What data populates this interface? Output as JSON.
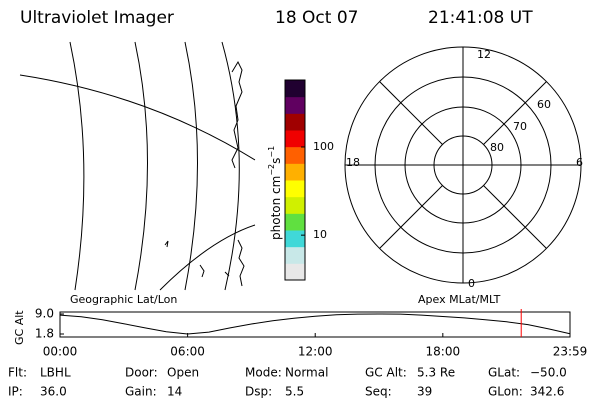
{
  "header": {
    "title": "Ultraviolet Imager",
    "date": "18 Oct 07",
    "time": "21:41:08 UT"
  },
  "colorbar": {
    "unit": {
      "base": "photon cm",
      "exp1": "−2",
      "mid": "s",
      "exp2": "−1"
    },
    "colors": [
      "#e8e8e8",
      "#c8e8e8",
      "#40d8d8",
      "#60e040",
      "#d0f000",
      "#ffff00",
      "#ffb000",
      "#ff6000",
      "#f00000",
      "#a00000",
      "#600060",
      "#200030"
    ],
    "log": true,
    "lim": [
      3.1,
      575
    ],
    "ticks": [
      10,
      100
    ]
  },
  "polar": {
    "mlt_labels": [
      "12",
      "18",
      "6",
      "0"
    ],
    "lat_labels": [
      "60",
      "70",
      "80"
    ]
  },
  "altitude": {
    "left_label": "Geographic Lat/Lon",
    "right_label": "Apex MLat/MLT",
    "ylabel": "GC Alt",
    "ylim": [
      0.72,
      9.72
    ],
    "yticks": [
      {
        "value": 9,
        "label": "9.0"
      },
      {
        "value": 1.8,
        "label": "1.8"
      }
    ],
    "xlim": [
      0,
      23.98
    ],
    "xticks": [
      {
        "value": 0,
        "label": "00:00"
      },
      {
        "value": 6,
        "label": "06:00"
      },
      {
        "value": 12,
        "label": "12:00"
      },
      {
        "value": 18,
        "label": "18:00"
      },
      {
        "value": 23.98,
        "label": "23:59"
      }
    ],
    "x": [
      0,
      1,
      2,
      3,
      4,
      5,
      6,
      7,
      8,
      9,
      10,
      11,
      12,
      13,
      14,
      15,
      16,
      17,
      18,
      19,
      20,
      21,
      22,
      23,
      23.98
    ],
    "values": [
      8.6,
      8.0,
      6.9,
      5.5,
      4.0,
      2.6,
      1.8,
      2.5,
      4.0,
      5.4,
      6.6,
      7.5,
      8.2,
      8.7,
      8.95,
      9.0,
      8.95,
      8.6,
      8.1,
      7.6,
      6.9,
      6.2,
      5.2,
      3.6,
      1.9
    ],
    "current_time": 21.686,
    "current_color": "#ff0000"
  },
  "info": [
    [
      {
        "label": "Flt:",
        "value": "LBHL"
      },
      {
        "label": "Door:",
        "value": "Open"
      },
      {
        "label": "Mode:",
        "value": "Normal"
      },
      {
        "label": "GC Alt:",
        "value": "5.3 Re"
      },
      {
        "label": "GLat:",
        "value": "−50.0"
      }
    ],
    [
      {
        "label": "IP:",
        "value": "36.0"
      },
      {
        "label": "Gain:",
        "value": "14"
      },
      {
        "label": "Dsp:",
        "value": "5.5"
      },
      {
        "label": "Seq:",
        "value": "39"
      },
      {
        "label": "GLon:",
        "value": "342.6"
      }
    ]
  ]
}
